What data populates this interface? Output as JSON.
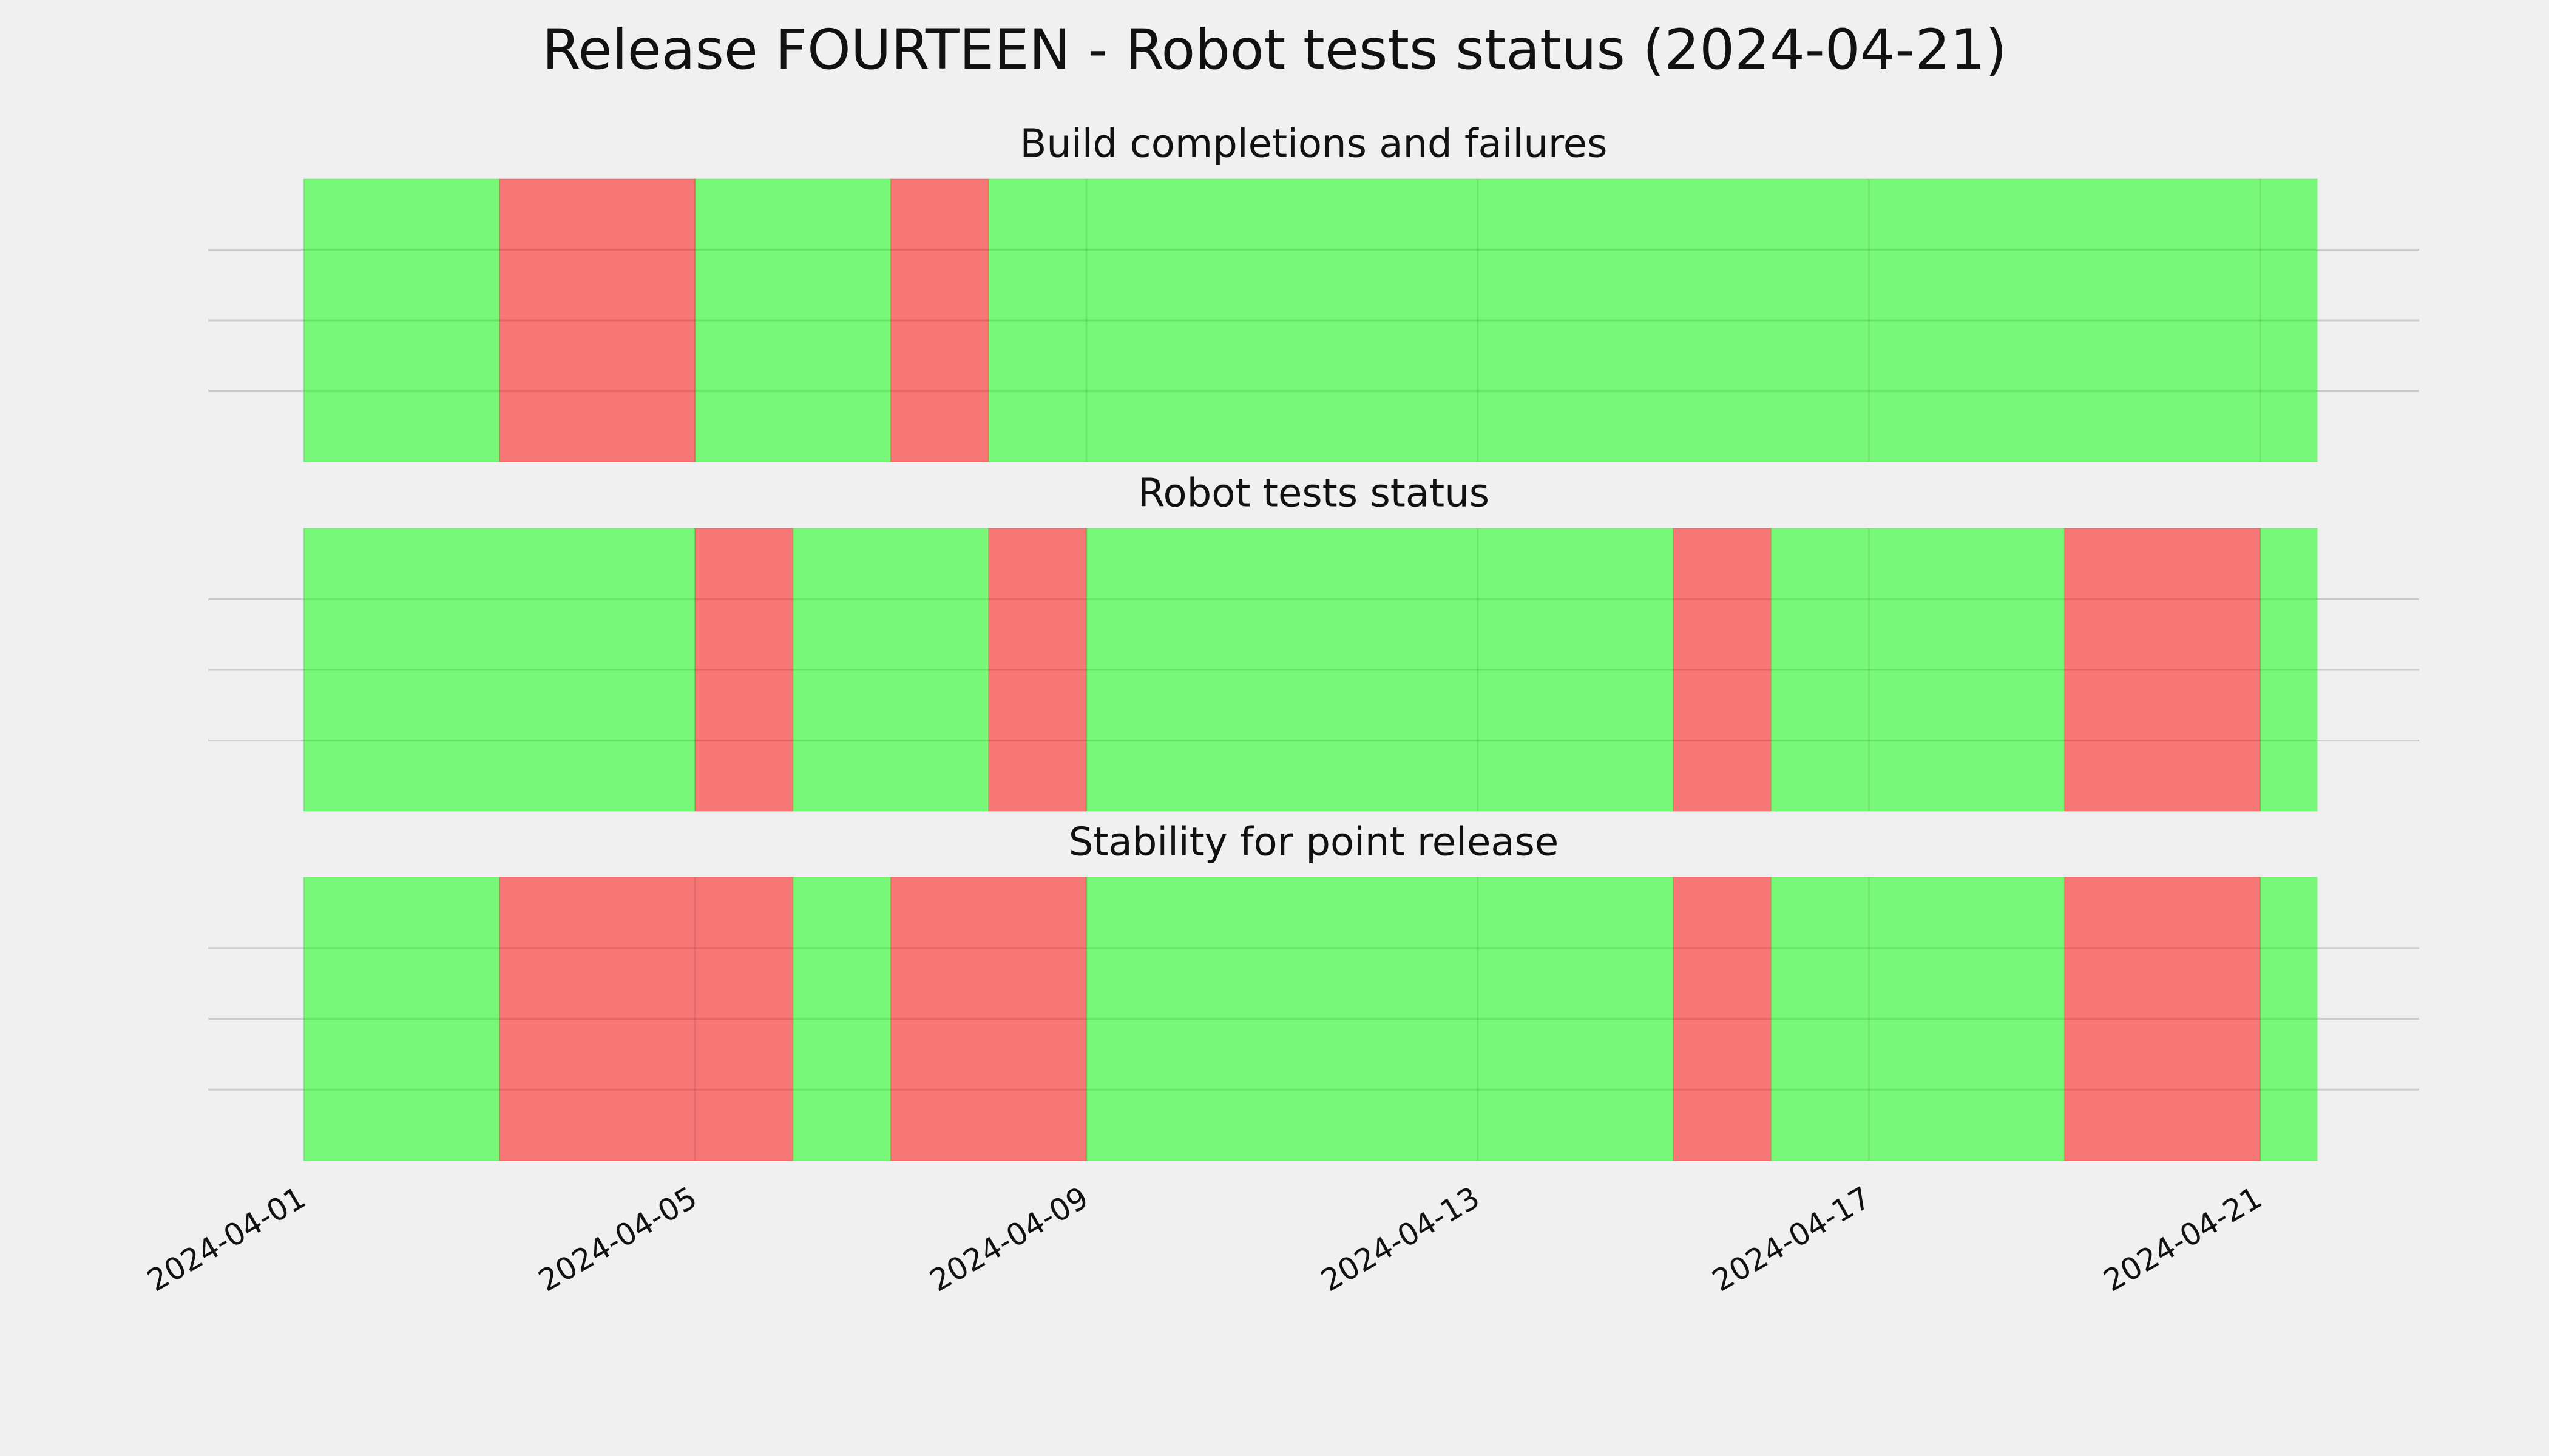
{
  "title": "Release FOURTEEN - Robot tests status (2024-04-21)",
  "chart_data": [
    {
      "type": "span",
      "title": "Build completions and failures",
      "xlim": [
        "2024-03-31T00:30",
        "2024-04-22T15:00"
      ],
      "xticks": [
        "2024-04-01",
        "2024-04-05",
        "2024-04-09",
        "2024-04-13",
        "2024-04-17",
        "2024-04-21"
      ],
      "grid": true,
      "alpha": 0.5,
      "spans": [
        {
          "start": "2024-04-01",
          "end": "2024-04-03",
          "color": "#00ff00"
        },
        {
          "start": "2024-04-03",
          "end": "2024-04-05",
          "color": "#ff0000"
        },
        {
          "start": "2024-04-05",
          "end": "2024-04-07",
          "color": "#00ff00"
        },
        {
          "start": "2024-04-07",
          "end": "2024-04-08",
          "color": "#ff0000"
        },
        {
          "start": "2024-04-08",
          "end": "2024-04-21T14:00",
          "color": "#00ff00"
        }
      ]
    },
    {
      "type": "span",
      "title": "Robot tests status",
      "xlim": [
        "2024-03-31T00:30",
        "2024-04-22T15:00"
      ],
      "xticks": [
        "2024-04-01",
        "2024-04-05",
        "2024-04-09",
        "2024-04-13",
        "2024-04-17",
        "2024-04-21"
      ],
      "grid": true,
      "alpha": 0.5,
      "spans": [
        {
          "start": "2024-04-01",
          "end": "2024-04-05",
          "color": "#00ff00"
        },
        {
          "start": "2024-04-05",
          "end": "2024-04-06",
          "color": "#ff0000"
        },
        {
          "start": "2024-04-06",
          "end": "2024-04-08",
          "color": "#00ff00"
        },
        {
          "start": "2024-04-08",
          "end": "2024-04-09",
          "color": "#ff0000"
        },
        {
          "start": "2024-04-09",
          "end": "2024-04-15",
          "color": "#00ff00"
        },
        {
          "start": "2024-04-15",
          "end": "2024-04-16",
          "color": "#ff0000"
        },
        {
          "start": "2024-04-16",
          "end": "2024-04-19",
          "color": "#00ff00"
        },
        {
          "start": "2024-04-19",
          "end": "2024-04-21",
          "color": "#ff0000"
        },
        {
          "start": "2024-04-21",
          "end": "2024-04-21T14:00",
          "color": "#00ff00"
        }
      ]
    },
    {
      "type": "span",
      "title": "Stability for point release",
      "xlim": [
        "2024-03-31T00:30",
        "2024-04-22T15:00"
      ],
      "xticks": [
        "2024-04-01",
        "2024-04-05",
        "2024-04-09",
        "2024-04-13",
        "2024-04-17",
        "2024-04-21"
      ],
      "grid": true,
      "alpha": 0.5,
      "spans": [
        {
          "start": "2024-04-01",
          "end": "2024-04-03",
          "color": "#00ff00"
        },
        {
          "start": "2024-04-03",
          "end": "2024-04-06",
          "color": "#ff0000"
        },
        {
          "start": "2024-04-06",
          "end": "2024-04-07",
          "color": "#00ff00"
        },
        {
          "start": "2024-04-07",
          "end": "2024-04-09",
          "color": "#ff0000"
        },
        {
          "start": "2024-04-09",
          "end": "2024-04-15",
          "color": "#00ff00"
        },
        {
          "start": "2024-04-15",
          "end": "2024-04-16",
          "color": "#ff0000"
        },
        {
          "start": "2024-04-16",
          "end": "2024-04-19",
          "color": "#00ff00"
        },
        {
          "start": "2024-04-19",
          "end": "2024-04-21",
          "color": "#ff0000"
        },
        {
          "start": "2024-04-21",
          "end": "2024-04-21T14:00",
          "color": "#00ff00"
        }
      ]
    }
  ]
}
